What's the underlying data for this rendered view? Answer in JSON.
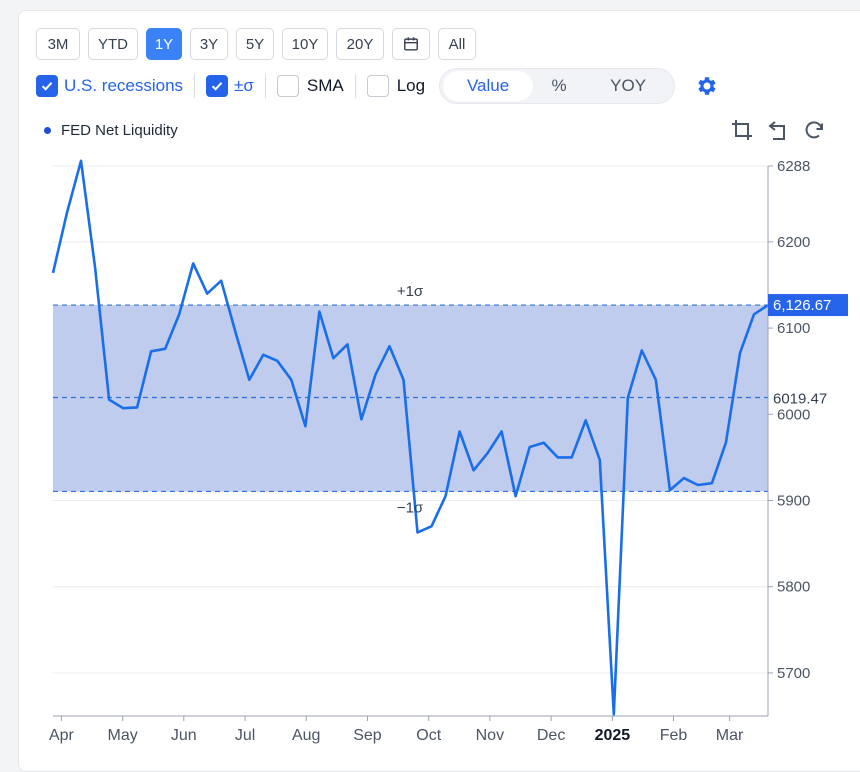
{
  "range_buttons": [
    {
      "label": "3M"
    },
    {
      "label": "YTD"
    },
    {
      "label": "1Y",
      "active": true
    },
    {
      "label": "3Y"
    },
    {
      "label": "5Y"
    },
    {
      "label": "10Y"
    },
    {
      "label": "20Y"
    },
    {
      "label": "",
      "icon": "calendar-icon"
    },
    {
      "label": "All"
    }
  ],
  "options": {
    "recessions_label": "U.S. recessions",
    "sigma_label": "±σ",
    "sma_label": "SMA",
    "log_label": "Log",
    "recessions_checked": true,
    "sigma_checked": true,
    "sma_checked": false,
    "log_checked": false
  },
  "modes": [
    {
      "label": "Value",
      "active": true
    },
    {
      "label": "%"
    },
    {
      "label": "YOY"
    }
  ],
  "icons": {
    "settings": "gear-icon",
    "crop": "crop-icon",
    "undo": "undo-icon",
    "reset": "refresh-icon"
  },
  "colors": {
    "accent": "#2563eb",
    "line": "#1a6fe8",
    "band": "#bcc9ed",
    "label_bg": "#2563eb"
  },
  "chart_data": {
    "type": "line",
    "legend": "FED Net Liquidity",
    "y_ticks": [
      5700,
      5800,
      5900,
      6000,
      6100,
      6200,
      6288
    ],
    "y_tick_labels": [
      "5700",
      "5800",
      "5900",
      "6000",
      "6100",
      "6200",
      "6288"
    ],
    "ylim": [
      5650,
      6288
    ],
    "x_tick_labels": [
      "Apr",
      "May",
      "Jun",
      "Jul",
      "Aug",
      "Sep",
      "Oct",
      "Nov",
      "Dec",
      "2025",
      "Feb",
      "Mar"
    ],
    "x_tick_positions": [
      0.6,
      4.97,
      9.33,
      13.7,
      18.06,
      22.43,
      26.8,
      31.16,
      35.53,
      39.9,
      44.26,
      48.26
    ],
    "mean": 6019.47,
    "mean_label": "6019.47",
    "plus_sigma": 6126.67,
    "minus_sigma": 5910.5,
    "plus_sigma_label": "+1σ",
    "minus_sigma_label": "−1σ",
    "last_value_label": "6,126.67",
    "series": [
      {
        "values": [
          6164,
          6234,
          6294,
          6170,
          6017,
          6007,
          6008,
          6073,
          6076,
          6116,
          6175,
          6140,
          6155,
          6096,
          6040,
          6069,
          6062,
          6040,
          5986,
          6119,
          6065,
          6081,
          5994,
          6046,
          6079,
          6040,
          5863,
          5870,
          5905,
          5980,
          5935,
          5955,
          5980,
          5905,
          5962,
          5967,
          5950,
          5950,
          5993,
          5947,
          5652,
          6019,
          6074,
          6040,
          5912,
          5926,
          5918,
          5920,
          5967,
          6071,
          6116,
          6126.67
        ]
      }
    ]
  }
}
